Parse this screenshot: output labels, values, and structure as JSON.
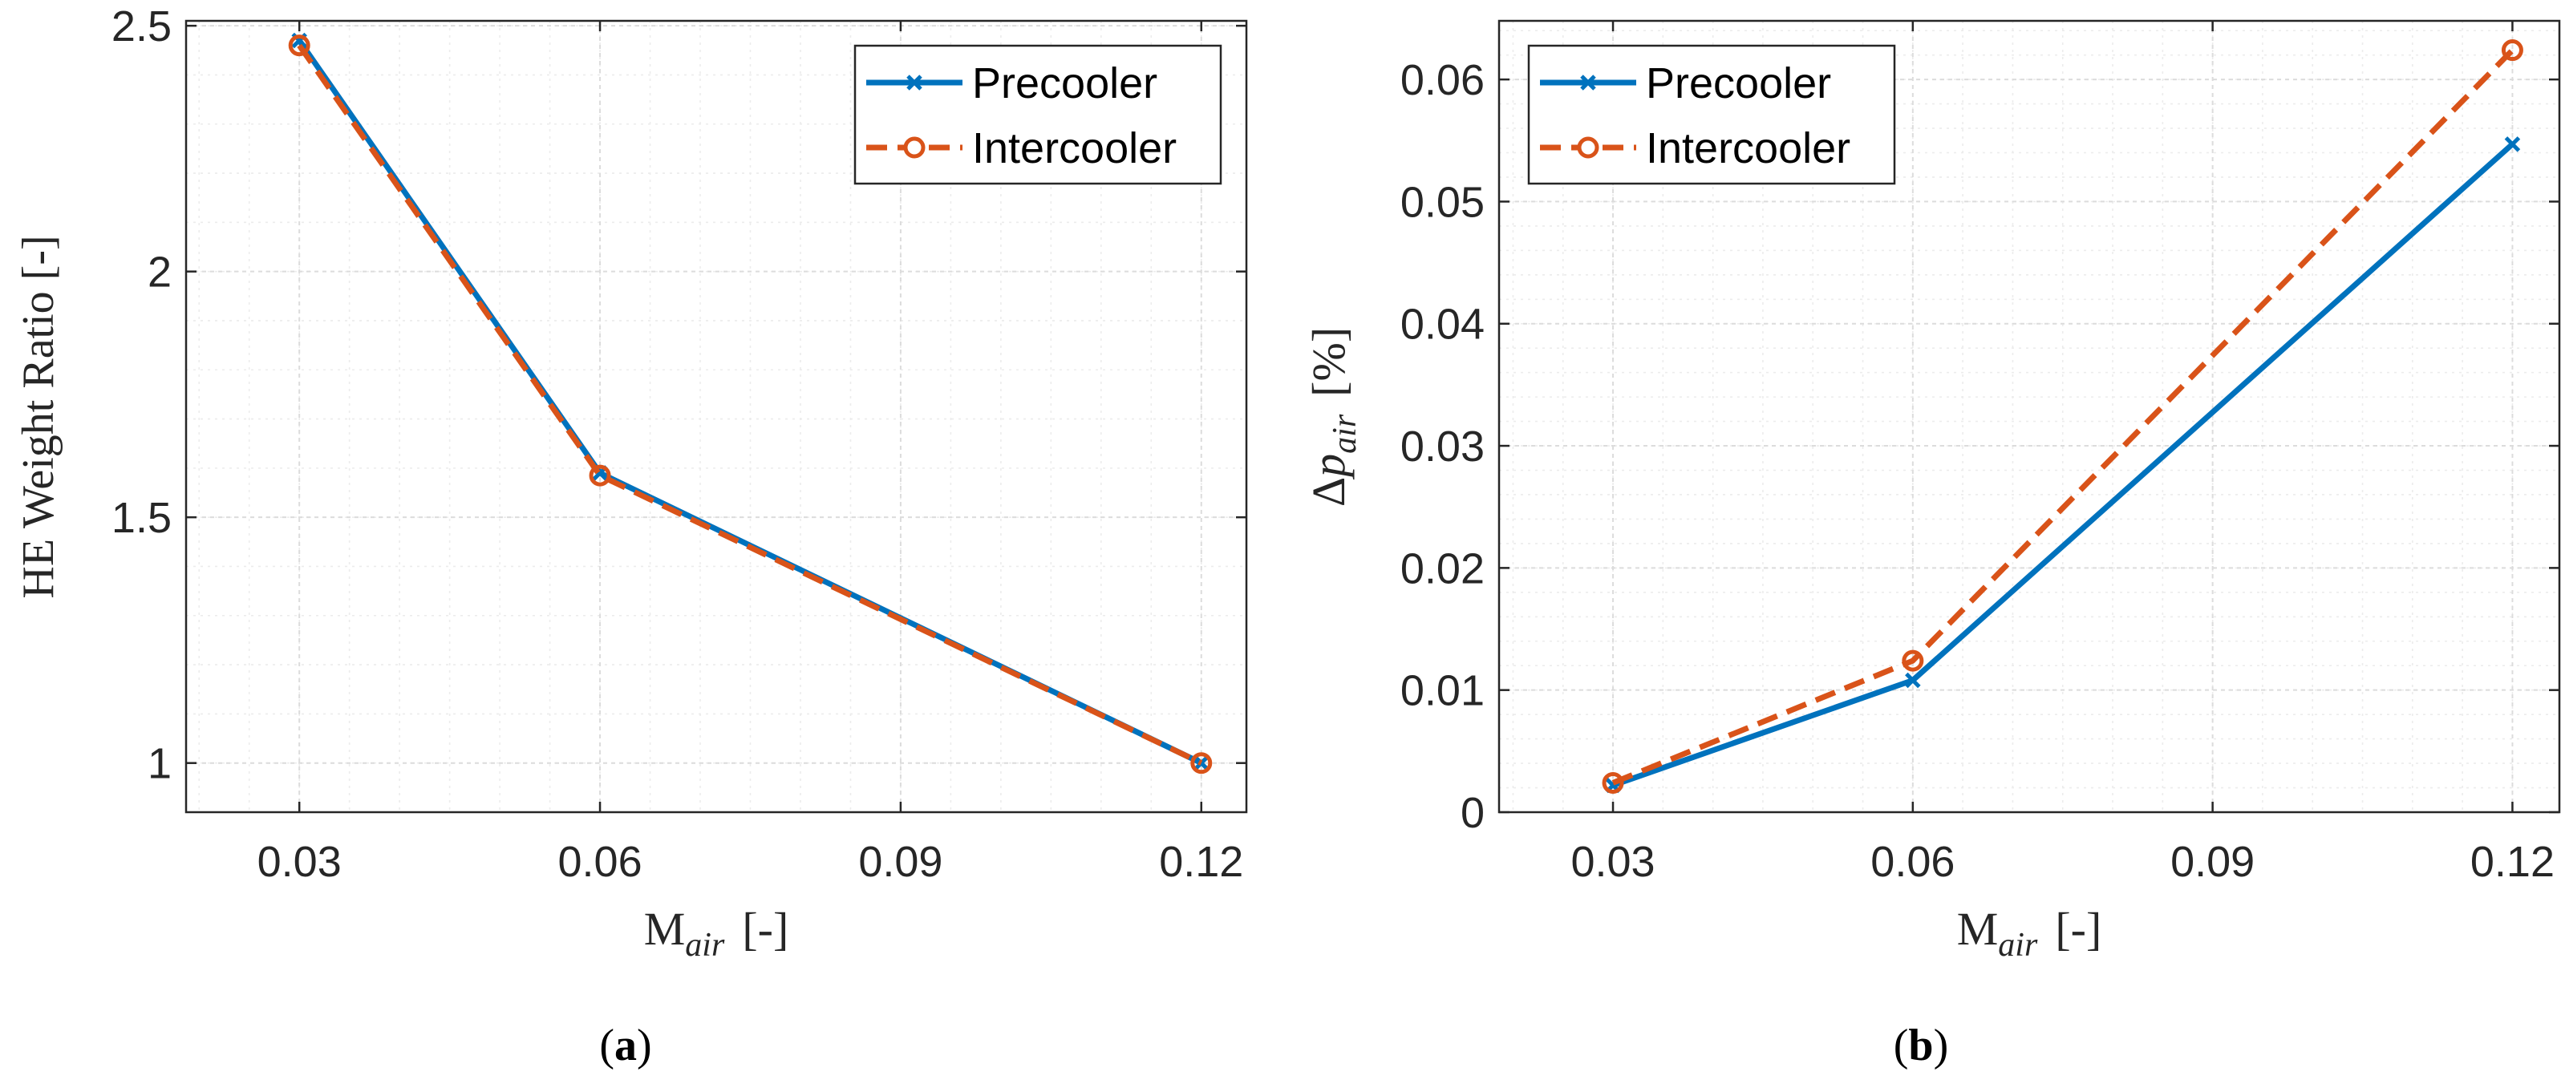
{
  "colors": {
    "precooler": "#0072BD",
    "intercooler": "#D95319",
    "axis": "#262626",
    "grid_major": "#dcdcdc",
    "grid_minor": "#ececec"
  },
  "chart_data": [
    {
      "type": "line",
      "panel_label": "(a)",
      "x": [
        0.03,
        0.06,
        0.12
      ],
      "xticks": [
        "0.03",
        "0.06",
        "0.09",
        "0.12"
      ],
      "xtick_values": [
        0.03,
        0.06,
        0.09,
        0.12
      ],
      "xlim": [
        0.0187,
        0.1245
      ],
      "ylim": [
        0.9,
        2.51
      ],
      "yticks": [
        "1",
        "1.5",
        "2",
        "2.5"
      ],
      "ytick_values": [
        1,
        1.5,
        2,
        2.5
      ],
      "xlabel_main": "M",
      "xlabel_sub": "air",
      "xlabel_unit": "[-]",
      "ylabel": "HE Weight Ratio [-]",
      "legend_position": "top-right",
      "grid": true,
      "series": [
        {
          "name": "Precooler",
          "marker": "x",
          "style": "solid",
          "values": [
            2.47,
            1.59,
            1.0
          ]
        },
        {
          "name": "Intercooler",
          "marker": "o",
          "style": "dashed",
          "values": [
            2.46,
            1.585,
            1.0
          ]
        }
      ]
    },
    {
      "type": "line",
      "panel_label": "(b)",
      "x": [
        0.03,
        0.06,
        0.12
      ],
      "xticks": [
        "0.03",
        "0.06",
        "0.09",
        "0.12"
      ],
      "xtick_values": [
        0.03,
        0.06,
        0.09,
        0.12
      ],
      "xlim": [
        0.0186,
        0.1247
      ],
      "ylim": [
        0,
        0.0648
      ],
      "yticks": [
        "0",
        "0.01",
        "0.02",
        "0.03",
        "0.04",
        "0.05",
        "0.06"
      ],
      "ytick_values": [
        0,
        0.01,
        0.02,
        0.03,
        0.04,
        0.05,
        0.06
      ],
      "xlabel_main": "M",
      "xlabel_sub": "air",
      "xlabel_unit": "[-]",
      "ylabel_delta": "Δ",
      "ylabel_main": "p",
      "ylabel_sub": "air",
      "ylabel_unit": "[%]",
      "legend_position": "top-left",
      "grid": true,
      "series": [
        {
          "name": "Precooler",
          "marker": "x",
          "style": "solid",
          "values": [
            0.0022,
            0.0108,
            0.0547
          ]
        },
        {
          "name": "Intercooler",
          "marker": "o",
          "style": "dashed",
          "values": [
            0.0024,
            0.0124,
            0.0624
          ]
        }
      ]
    }
  ]
}
